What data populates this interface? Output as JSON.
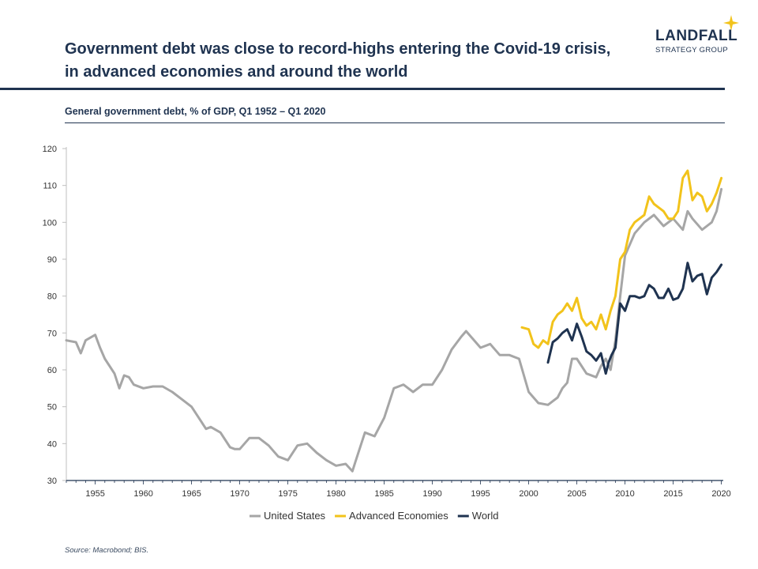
{
  "header": {
    "title_line1": "Government debt was close to record-highs entering the Covid-19 crisis,",
    "title_line2": "in advanced economies and around the world",
    "logo_name": "LANDFALL",
    "logo_sub": "STRATEGY GROUP",
    "logo_icon": "four-point-star-icon"
  },
  "colors": {
    "navy": "#1f3350",
    "gray": "#a6a6a6",
    "gold": "#f2c31b"
  },
  "footer": {
    "source": "Source: Macrobond;  BIS."
  },
  "chart_data": {
    "type": "line",
    "title": "General government debt, % of GDP, Q1 1952 – Q1 2020",
    "xlim": [
      1952,
      2020.2
    ],
    "ylim": [
      30,
      120
    ],
    "yticks": [
      30,
      40,
      50,
      60,
      70,
      80,
      90,
      100,
      110,
      120
    ],
    "xticks": [
      1955,
      1960,
      1965,
      1970,
      1975,
      1980,
      1985,
      1990,
      1995,
      2000,
      2005,
      2010,
      2015,
      2020
    ],
    "grid": false,
    "legend": "bottom",
    "series": [
      {
        "name": "United States",
        "color": "#a6a6a6",
        "x": [
          1952,
          1953,
          1953.5,
          1954,
          1955,
          1955.5,
          1956,
          1957,
          1957.5,
          1958,
          1958.5,
          1959,
          1960,
          1961,
          1962,
          1963,
          1964,
          1965,
          1966,
          1966.5,
          1967,
          1968,
          1969,
          1969.5,
          1970,
          1971,
          1972,
          1973,
          1974,
          1975,
          1976,
          1977,
          1978,
          1979,
          1980,
          1981,
          1981.7,
          1982,
          1983,
          1984,
          1985,
          1986,
          1987,
          1988,
          1989,
          1990,
          1991,
          1992,
          1993,
          1993.5,
          1994,
          1995,
          1996,
          1997,
          1998,
          1999,
          2000,
          2001,
          2002,
          2003,
          2003.5,
          2004,
          2004.5,
          2005,
          2006,
          2007,
          2007.5,
          2008,
          2008.5,
          2009,
          2009.5,
          2010,
          2011,
          2012,
          2013,
          2014,
          2015,
          2016,
          2016.5,
          2017,
          2018,
          2019,
          2019.5,
          2020
        ],
        "y": [
          68,
          67.5,
          64.5,
          68,
          69.5,
          66,
          63,
          59,
          55,
          58.5,
          58,
          56,
          55,
          55.5,
          55.5,
          54,
          52,
          50,
          46,
          44,
          44.5,
          43,
          39,
          38.5,
          38.5,
          41.5,
          41.5,
          39.5,
          36.5,
          35.5,
          39.5,
          40,
          37.5,
          35.5,
          34,
          34.5,
          32.5,
          35,
          43,
          42,
          47,
          55,
          56,
          54,
          56,
          56,
          60,
          65.5,
          69,
          70.5,
          69,
          66,
          67,
          64,
          64,
          63,
          54,
          51,
          50.5,
          52.5,
          55,
          56.5,
          63,
          63,
          59,
          58,
          61,
          63,
          60,
          68,
          80,
          91,
          97,
          100,
          102,
          99,
          101,
          98,
          103,
          101,
          98,
          100,
          103,
          109
        ]
      },
      {
        "name": "Advanced Economies",
        "color": "#f2c31b",
        "x": [
          1999.3,
          2000,
          2000.5,
          2001,
          2001.5,
          2002,
          2002.5,
          2003,
          2003.5,
          2004,
          2004.5,
          2005,
          2005.5,
          2006,
          2006.5,
          2007,
          2007.5,
          2008,
          2008.5,
          2009,
          2009.5,
          2010,
          2010.5,
          2011,
          2011.5,
          2012,
          2012.5,
          2013,
          2013.5,
          2014,
          2014.5,
          2015,
          2015.5,
          2016,
          2016.5,
          2017,
          2017.5,
          2018,
          2018.5,
          2019,
          2019.5,
          2020
        ],
        "y": [
          71.5,
          71,
          67,
          66,
          68,
          67,
          73,
          75,
          76,
          78,
          76,
          79.5,
          74,
          72,
          73,
          71,
          75,
          71,
          76,
          80,
          90,
          92,
          98,
          100,
          101,
          102,
          107,
          105,
          104,
          103,
          101,
          101,
          103,
          112,
          114,
          106,
          108,
          107,
          103,
          105,
          108,
          112
        ]
      },
      {
        "name": "World",
        "color": "#1f3350",
        "x": [
          2002,
          2002.5,
          2003,
          2003.5,
          2004,
          2004.5,
          2005,
          2005.5,
          2006,
          2006.5,
          2007,
          2007.5,
          2008,
          2008.3,
          2008.6,
          2009,
          2009.5,
          2010,
          2010.5,
          2011,
          2011.5,
          2012,
          2012.5,
          2013,
          2013.5,
          2014,
          2014.5,
          2015,
          2015.5,
          2016,
          2016.5,
          2017,
          2017.5,
          2018,
          2018.5,
          2019,
          2019.5,
          2020
        ],
        "y": [
          62,
          67.5,
          68.5,
          70,
          71,
          68,
          72.5,
          69,
          65,
          64,
          62.5,
          64.5,
          59,
          62,
          64,
          66,
          78,
          76,
          80,
          80,
          79.5,
          80,
          83,
          82,
          79.5,
          79.5,
          82,
          79,
          79.5,
          82,
          89,
          84,
          85.5,
          86,
          80.5,
          85,
          86.5,
          88.5
        ]
      }
    ]
  }
}
